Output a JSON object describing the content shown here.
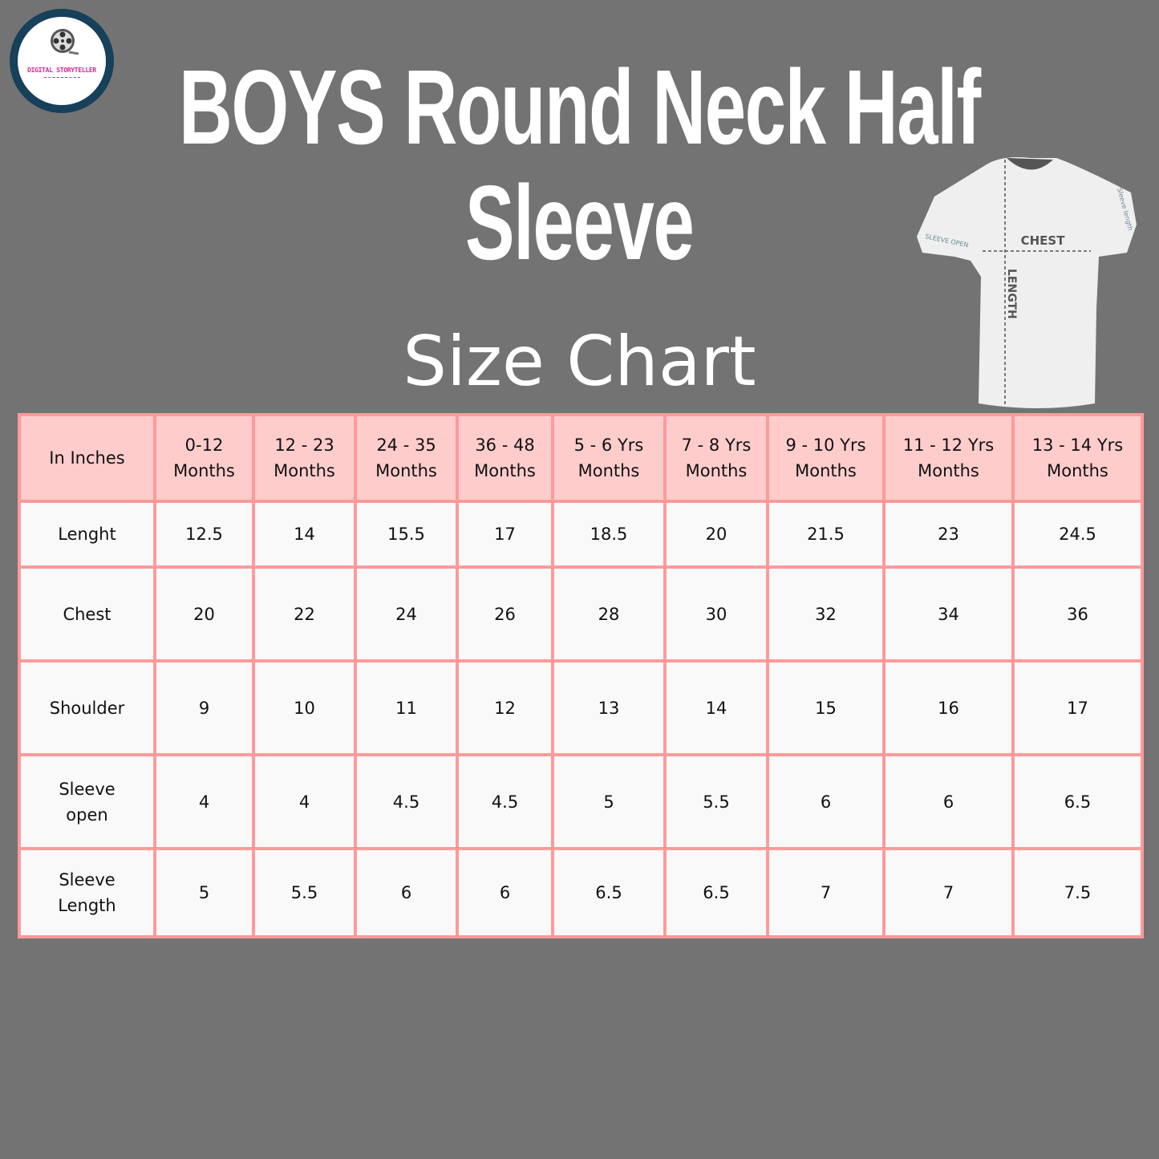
{
  "logo": {
    "text": "DIGITAL STORYTELLER"
  },
  "title": {
    "line1": "BOYS Round Neck Half",
    "line2": "Sleeve"
  },
  "subtitle": "Size Chart",
  "illustration": {
    "labels": {
      "chest": "CHEST",
      "length": "LENGTH",
      "sleeve_open": "SLEEVE OPEN",
      "sleeve_length": "Sleeve length"
    }
  },
  "colors": {
    "background": "#737373",
    "header_fill": "#ffcccc",
    "border": "#ff9a9a",
    "cell_fill": "#f9f9f9",
    "logo_ring": "#17405a",
    "logo_text": "#e0209a"
  },
  "table": {
    "corner": "In Inches",
    "columns": [
      [
        "0-12",
        "Months"
      ],
      [
        "12 - 23",
        "Months"
      ],
      [
        "24 - 35",
        "Months"
      ],
      [
        "36 - 48",
        "Months"
      ],
      [
        "5 - 6 Yrs",
        "Months"
      ],
      [
        "7 - 8 Yrs",
        "Months"
      ],
      [
        "9 - 10 Yrs",
        "Months"
      ],
      [
        "11 - 12  Yrs",
        "Months"
      ],
      [
        "13 - 14 Yrs",
        "Months"
      ]
    ],
    "rows": [
      {
        "label": [
          "Lenght"
        ],
        "values": [
          "12.5",
          "14",
          "15.5",
          "17",
          "18.5",
          "20",
          "21.5",
          "23",
          "24.5"
        ]
      },
      {
        "label": [
          "Chest"
        ],
        "values": [
          "20",
          "22",
          "24",
          "26",
          "28",
          "30",
          "32",
          "34",
          "36"
        ]
      },
      {
        "label": [
          "Shoulder"
        ],
        "values": [
          "9",
          "10",
          "11",
          "12",
          "13",
          "14",
          "15",
          "16",
          "17"
        ]
      },
      {
        "label": [
          "Sleeve",
          "open"
        ],
        "values": [
          "4",
          "4",
          "4.5",
          "4.5",
          "5",
          "5.5",
          "6",
          "6",
          "6.5"
        ]
      },
      {
        "label": [
          "Sleeve",
          "Length"
        ],
        "values": [
          "5",
          "5.5",
          "6",
          "6",
          "6.5",
          "6.5",
          "7",
          "7",
          "7.5"
        ]
      }
    ]
  }
}
